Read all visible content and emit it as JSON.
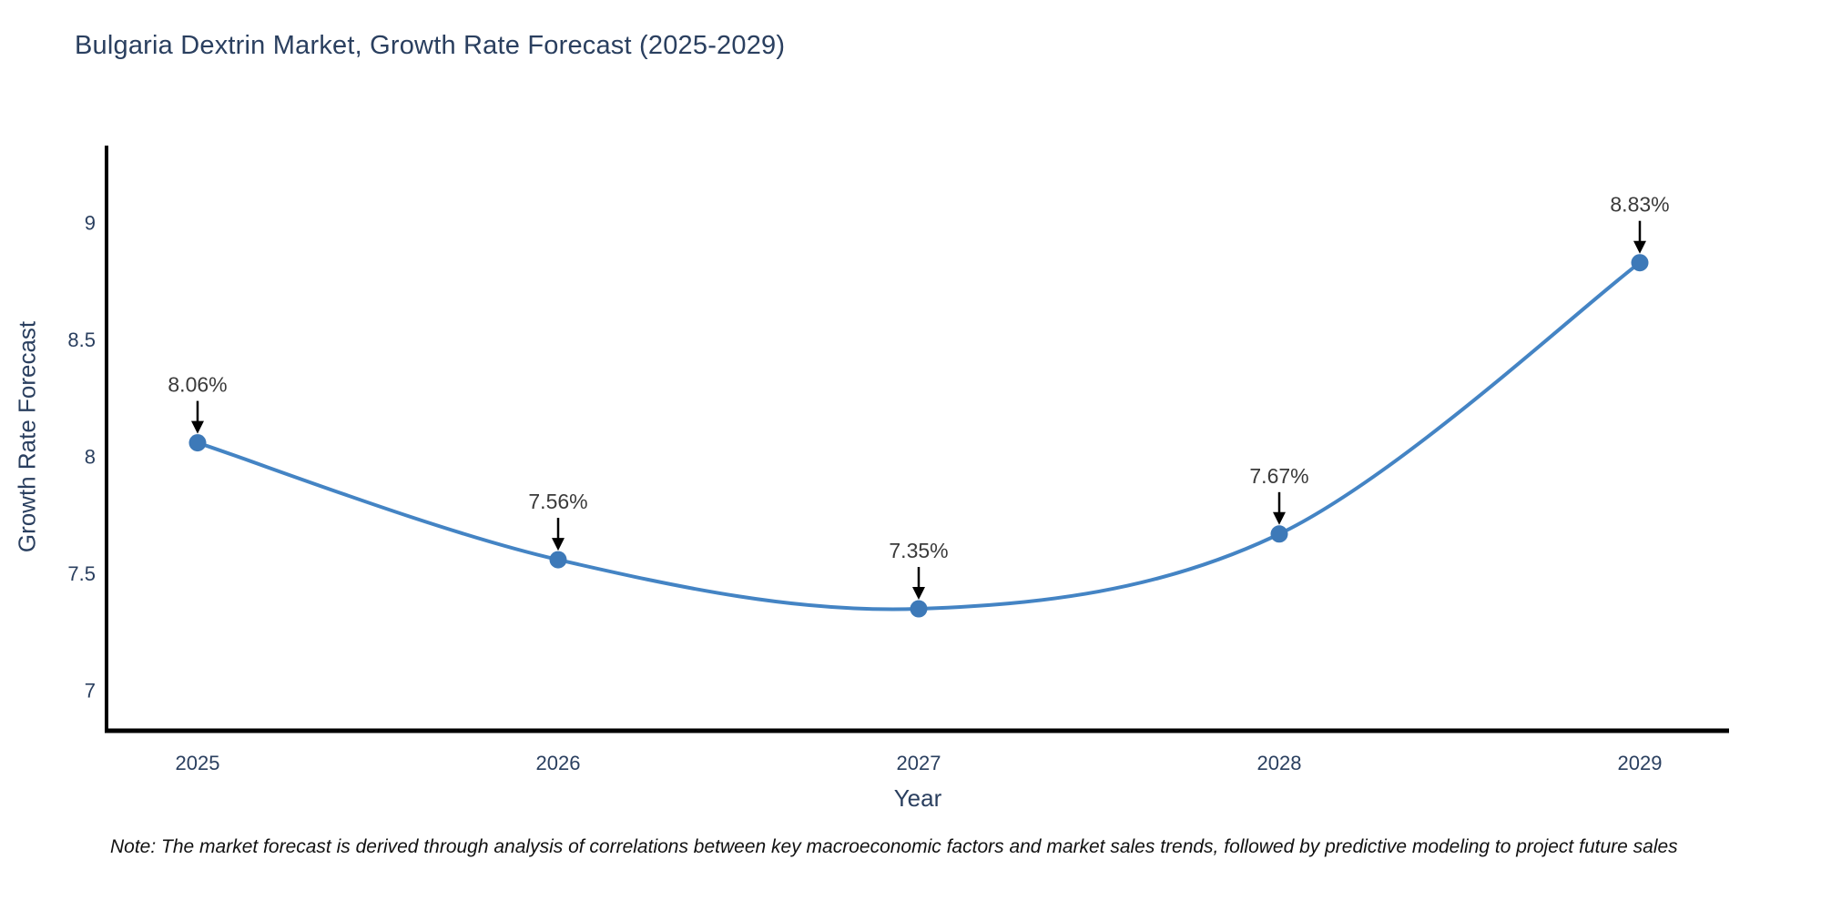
{
  "page": {
    "background": "#ffffff"
  },
  "note": {
    "text": "Note: The market forecast is derived through analysis of correlations between key macroeconomic factors and market sales trends, followed by predictive modeling to project future sales"
  },
  "chart_data": {
    "type": "line",
    "title": "Bulgaria Dextrin Market, Growth Rate Forecast (2025-2029)",
    "xlabel": "Year",
    "ylabel": "Growth Rate Forecast",
    "categories": [
      2025,
      2026,
      2027,
      2028,
      2029
    ],
    "values": [
      8.06,
      7.56,
      7.35,
      7.67,
      8.83
    ],
    "point_labels": [
      "8.06%",
      "7.56%",
      "7.35%",
      "7.67%",
      "8.83%"
    ],
    "yticks": [
      7,
      7.5,
      8,
      8.5,
      9
    ],
    "ylim": [
      6.83,
      9.33
    ],
    "line_shape": "spline",
    "grid": false,
    "legend": "none",
    "annotations_have_arrows": true,
    "colors": {
      "line": "#4484c4",
      "marker": "#3d79b8",
      "axis_line": "#000000",
      "chart_text": "#2a3f5f",
      "annotation_text": "#3a3a3a",
      "note_text": "#111111",
      "arrow": "#000000"
    }
  }
}
